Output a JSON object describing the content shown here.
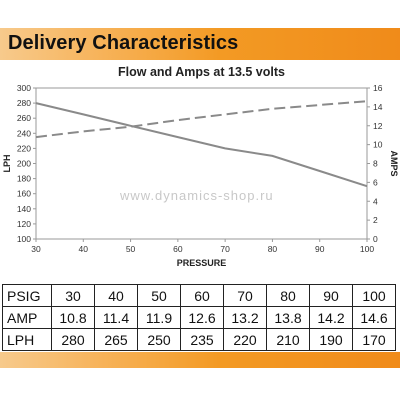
{
  "header": {
    "title": "Delivery Characteristics"
  },
  "watermark": "www.dynamics-shop.ru",
  "chart_data": {
    "type": "line",
    "title": "Flow and Amps at 13.5 volts",
    "xlabel": "PRESSURE",
    "ylabel": "LPH",
    "y2label": "AMPS",
    "x": [
      30,
      40,
      50,
      60,
      70,
      80,
      90,
      100
    ],
    "xlim": [
      30,
      100
    ],
    "xticks": [
      30,
      40,
      50,
      60,
      70,
      80,
      90,
      100
    ],
    "ylim": [
      100,
      300
    ],
    "yticks": [
      100,
      120,
      140,
      160,
      180,
      200,
      220,
      240,
      260,
      280,
      300
    ],
    "y2lim": [
      0,
      16
    ],
    "y2ticks": [
      0,
      2,
      4,
      6,
      8,
      10,
      12,
      14,
      16
    ],
    "grid": false,
    "series": [
      {
        "axis": "left",
        "style": "solid",
        "color": "#8a8a8a",
        "values": [
          280,
          265,
          250,
          235,
          220,
          210,
          190,
          170
        ]
      },
      {
        "axis": "right",
        "style": "dashed",
        "color": "#8a8a8a",
        "values": [
          10.8,
          11.4,
          11.9,
          12.6,
          13.2,
          13.8,
          14.2,
          14.6
        ]
      }
    ]
  },
  "table": {
    "rows": [
      {
        "label": "PSIG",
        "values": [
          "30",
          "40",
          "50",
          "60",
          "70",
          "80",
          "90",
          "100"
        ]
      },
      {
        "label": "AMP",
        "values": [
          "10.8",
          "11.4",
          "11.9",
          "12.6",
          "13.2",
          "13.8",
          "14.2",
          "14.6"
        ]
      },
      {
        "label": "LPH",
        "values": [
          "280",
          "265",
          "250",
          "235",
          "220",
          "210",
          "190",
          "170"
        ]
      }
    ]
  }
}
